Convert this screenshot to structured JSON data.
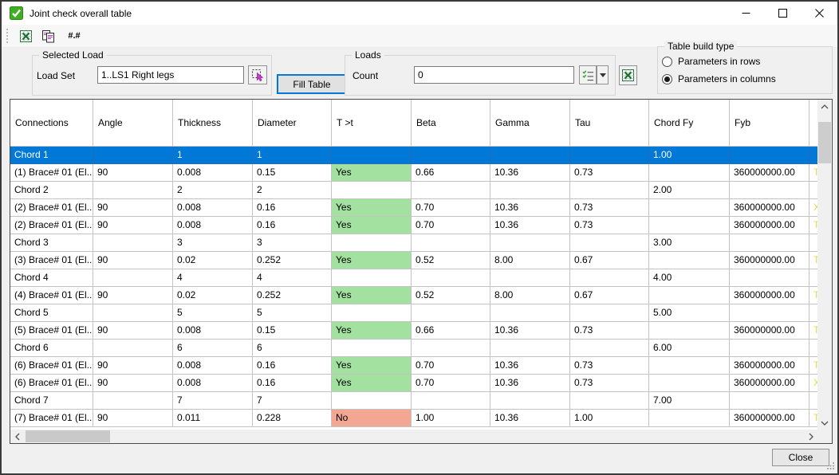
{
  "window": {
    "title": "Joint check overall table",
    "close_button_label": "Close"
  },
  "toolbar": {
    "number_format_label": "#.#"
  },
  "selected_load": {
    "group_label": "Selected Load",
    "field_label": "Load Set",
    "value": "1..LS1 Right legs"
  },
  "fill_table_label": "Fill Table",
  "loads": {
    "group_label": "Loads",
    "field_label": "Count",
    "value": "0"
  },
  "table_build": {
    "group_label": "Table build type",
    "options": [
      {
        "label": "Parameters in rows",
        "selected": false
      },
      {
        "label": "Parameters in columns",
        "selected": true
      }
    ]
  },
  "table": {
    "columns": [
      "Connections",
      "Angle",
      "Thickness",
      "Diameter",
      "T >t",
      "Beta",
      "Gamma",
      "Tau",
      "Chord Fy",
      "Fyb"
    ],
    "rows": [
      {
        "selected": true,
        "status": null,
        "extra": "",
        "cells": [
          "Chord 1",
          "",
          "1",
          "1",
          "",
          "",
          "",
          "",
          "1.00",
          ""
        ]
      },
      {
        "selected": false,
        "status": "yes",
        "extra": "T",
        "cells": [
          "(1) Brace# 01 (El...",
          "90",
          "0.008",
          "0.15",
          "Yes",
          "0.66",
          "10.36",
          "0.73",
          "",
          "360000000.00"
        ]
      },
      {
        "selected": false,
        "status": null,
        "extra": "",
        "cells": [
          "Chord 2",
          "",
          "2",
          "2",
          "",
          "",
          "",
          "",
          "2.00",
          ""
        ]
      },
      {
        "selected": false,
        "status": "yes",
        "extra": "X",
        "cells": [
          "(2) Brace# 01 (El...",
          "90",
          "0.008",
          "0.16",
          "Yes",
          "0.70",
          "10.36",
          "0.73",
          "",
          "360000000.00"
        ]
      },
      {
        "selected": false,
        "status": "yes",
        "extra": "T",
        "cells": [
          "(2) Brace# 01 (El...",
          "90",
          "0.008",
          "0.16",
          "Yes",
          "0.70",
          "10.36",
          "0.73",
          "",
          "360000000.00"
        ]
      },
      {
        "selected": false,
        "status": null,
        "extra": "",
        "cells": [
          "Chord 3",
          "",
          "3",
          "3",
          "",
          "",
          "",
          "",
          "3.00",
          ""
        ]
      },
      {
        "selected": false,
        "status": "yes",
        "extra": "T",
        "cells": [
          "(3) Brace# 01 (El...",
          "90",
          "0.02",
          "0.252",
          "Yes",
          "0.52",
          "8.00",
          "0.67",
          "",
          "360000000.00"
        ]
      },
      {
        "selected": false,
        "status": null,
        "extra": "",
        "cells": [
          "Chord 4",
          "",
          "4",
          "4",
          "",
          "",
          "",
          "",
          "4.00",
          ""
        ]
      },
      {
        "selected": false,
        "status": "yes",
        "extra": "T",
        "cells": [
          "(4) Brace# 01 (El...",
          "90",
          "0.02",
          "0.252",
          "Yes",
          "0.52",
          "8.00",
          "0.67",
          "",
          "360000000.00"
        ]
      },
      {
        "selected": false,
        "status": null,
        "extra": "",
        "cells": [
          "Chord 5",
          "",
          "5",
          "5",
          "",
          "",
          "",
          "",
          "5.00",
          ""
        ]
      },
      {
        "selected": false,
        "status": "yes",
        "extra": "T",
        "cells": [
          "(5) Brace# 01 (El...",
          "90",
          "0.008",
          "0.15",
          "Yes",
          "0.66",
          "10.36",
          "0.73",
          "",
          "360000000.00"
        ]
      },
      {
        "selected": false,
        "status": null,
        "extra": "",
        "cells": [
          "Chord 6",
          "",
          "6",
          "6",
          "",
          "",
          "",
          "",
          "6.00",
          ""
        ]
      },
      {
        "selected": false,
        "status": "yes",
        "extra": "T",
        "cells": [
          "(6) Brace# 01 (El...",
          "90",
          "0.008",
          "0.16",
          "Yes",
          "0.70",
          "10.36",
          "0.73",
          "",
          "360000000.00"
        ]
      },
      {
        "selected": false,
        "status": "yes",
        "extra": "X",
        "cells": [
          "(6) Brace# 01 (El...",
          "90",
          "0.008",
          "0.16",
          "Yes",
          "0.70",
          "10.36",
          "0.73",
          "",
          "360000000.00"
        ]
      },
      {
        "selected": false,
        "status": null,
        "extra": "",
        "cells": [
          "Chord 7",
          "",
          "7",
          "7",
          "",
          "",
          "",
          "",
          "7.00",
          ""
        ]
      },
      {
        "selected": false,
        "status": "no",
        "extra": "T",
        "cells": [
          "(7) Brace# 01 (El...",
          "90",
          "0.011",
          "0.228",
          "No",
          "1.00",
          "10.36",
          "1.00",
          "",
          "360000000.00"
        ]
      }
    ]
  },
  "icons": {
    "title": "green-checkbox-icon",
    "toolbar": [
      "excel-export-icon",
      "copy-icon",
      "number-format-icon"
    ],
    "selected_load_picker": "selection-picker-icon",
    "loads_buttons": [
      "checklist-icon",
      "dropdown-arrow-icon",
      "excel-export-icon"
    ]
  },
  "colors": {
    "accent_blue": "#0078d7",
    "selected_row_bg": "#0078d7",
    "yes_cell_green": "#a3e1a0",
    "no_cell_red": "#f3a793",
    "title_icon_green": "#3eae23",
    "excel_green": "#217346",
    "copy_magenta": "#c02bc0",
    "extra_letter_yellow": "#e3d94a"
  }
}
